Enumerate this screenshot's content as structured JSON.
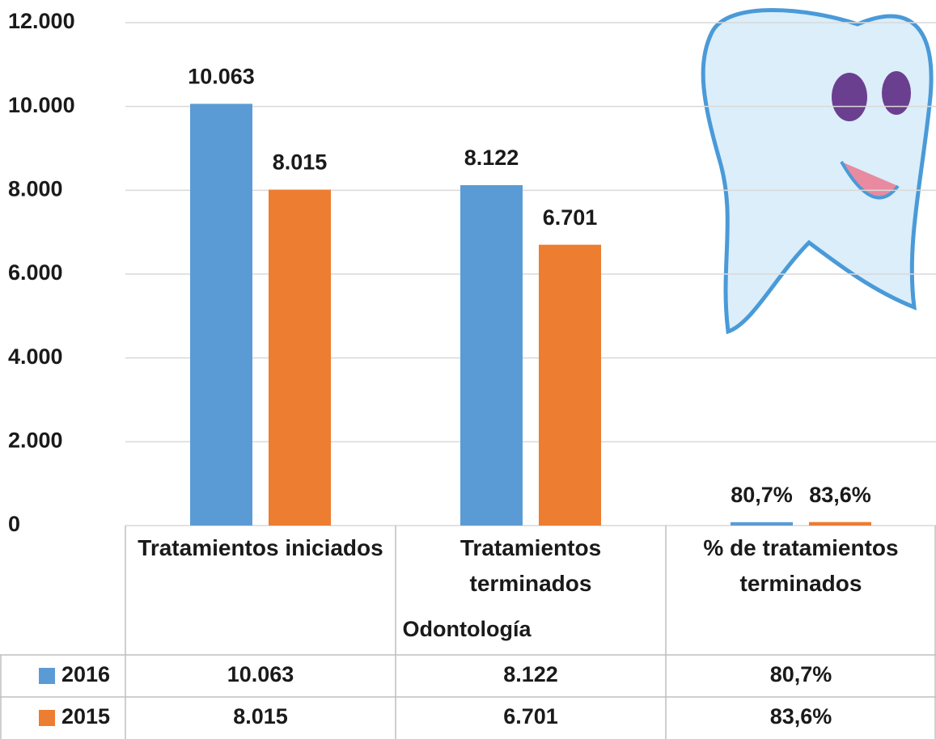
{
  "chart_data": {
    "type": "bar",
    "categories": [
      "Tratamientos iniciados",
      "Tratamientos terminados",
      "% de tratamientos terminados"
    ],
    "category_group": "Odontología",
    "series": [
      {
        "name": "2016",
        "color": "#5b9bd5",
        "values": [
          10063,
          8122,
          80.7
        ],
        "value_labels": [
          "10.063",
          "8.122",
          "80,7%"
        ]
      },
      {
        "name": "2015",
        "color": "#ed7d31",
        "values": [
          8015,
          6701,
          83.6
        ],
        "value_labels": [
          "8.015",
          "6.701",
          "83,6%"
        ]
      }
    ],
    "ylim": [
      0,
      12000
    ],
    "yticks": [
      0,
      {
        "value": 2000,
        "label": "2.000"
      },
      {
        "value": 4000,
        "label": "4.000"
      },
      {
        "value": 6000,
        "label": "6.000"
      },
      {
        "value": 8000,
        "label": "8.000"
      },
      {
        "value": 10000,
        "label": "10.000"
      },
      {
        "value": 12000,
        "label": "12.000"
      }
    ],
    "grid": true,
    "data_table": true
  }
}
